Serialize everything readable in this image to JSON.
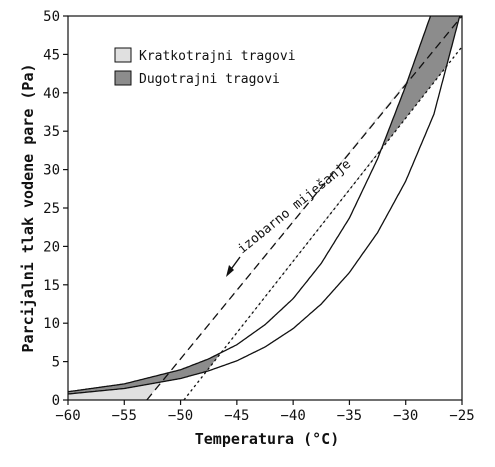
{
  "chart_data": {
    "type": "line",
    "xlabel": "Temperatura (°C)",
    "ylabel": "Parcijalni tlak vodene pare (Pa)",
    "xlim": [
      -60,
      -25
    ],
    "ylim": [
      0,
      50
    ],
    "x_ticks": [
      -60,
      -55,
      -50,
      -45,
      -40,
      -35,
      -30,
      -25
    ],
    "x_tick_labels": [
      "−60",
      "−55",
      "−50",
      "−45",
      "−40",
      "−35",
      "−30",
      "−25"
    ],
    "y_ticks": [
      0,
      5,
      10,
      15,
      20,
      25,
      30,
      35,
      40,
      45,
      50
    ],
    "y_tick_labels": [
      "0",
      "5",
      "10",
      "15",
      "20",
      "25",
      "30",
      "35",
      "40",
      "45",
      "50"
    ],
    "grid": false,
    "legend_position": "top-left",
    "legend": [
      {
        "label": "Kratkotrajni tragovi",
        "color": "#e0e0e0"
      },
      {
        "label": "Dugotrajni tragovi",
        "color": "#8c8c8c"
      }
    ],
    "annotation": {
      "text": "izobarno miješanje",
      "arrow_direction": "down-left"
    },
    "series": [
      {
        "name": "",
        "style": "solid",
        "x": [
          -60,
          -55,
          -50,
          -47.5,
          -45,
          -42.5,
          -40,
          -37.5,
          -35,
          -32.5,
          -30,
          -27.8
        ],
        "y": [
          1.08,
          2.1,
          3.94,
          5.36,
          7.2,
          9.8,
          13.2,
          17.8,
          23.7,
          31.4,
          40.9,
          50
        ]
      },
      {
        "name": "",
        "style": "solid",
        "x": [
          -60,
          -55,
          -50,
          -47.5,
          -45,
          -42.5,
          -40,
          -37.5,
          -35,
          -32.5,
          -30,
          -27.5,
          -25.2
        ],
        "y": [
          0.78,
          1.5,
          2.8,
          3.8,
          5.1,
          6.9,
          9.3,
          12.5,
          16.6,
          21.8,
          28.5,
          37.2,
          50
        ]
      },
      {
        "name": "",
        "style": "dashed",
        "x": [
          -53.0,
          -25.0
        ],
        "y": [
          0,
          50
        ]
      },
      {
        "name": "",
        "style": "dotted",
        "x": [
          -49.7,
          -25.0
        ],
        "y": [
          0,
          46
        ]
      }
    ]
  },
  "colors": {
    "short_lived": "#e0e0e0",
    "long_lived": "#8c8c8c",
    "line": "#111111"
  }
}
